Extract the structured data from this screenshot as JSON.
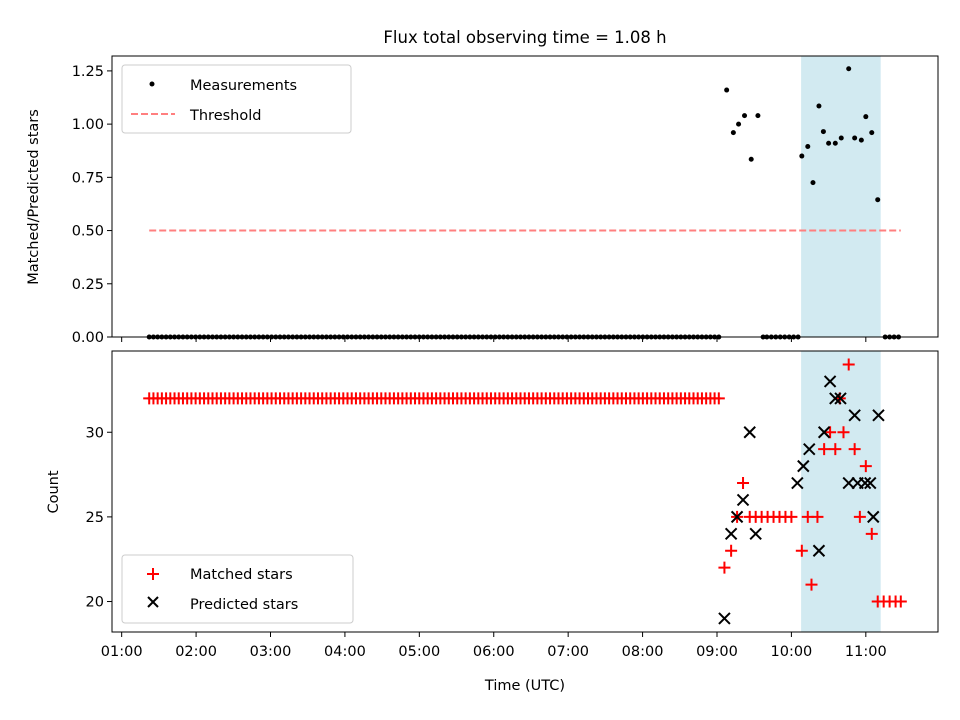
{
  "chart_data": {
    "title": "Flux total observing time = 1.08 h",
    "xlabel": "Time (UTC)",
    "x_unit": "hours UTC",
    "x_ticks": [
      {
        "value": 1,
        "label": "01:00"
      },
      {
        "value": 2,
        "label": "02:00"
      },
      {
        "value": 3,
        "label": "03:00"
      },
      {
        "value": 4,
        "label": "04:00"
      },
      {
        "value": 5,
        "label": "05:00"
      },
      {
        "value": 6,
        "label": "06:00"
      },
      {
        "value": 7,
        "label": "07:00"
      },
      {
        "value": 8,
        "label": "08:00"
      },
      {
        "value": 9,
        "label": "09:00"
      },
      {
        "value": 10,
        "label": "10:00"
      },
      {
        "value": 11,
        "label": "11:00"
      }
    ],
    "xlim": [
      0.87,
      11.97
    ],
    "shaded_span": {
      "x0": 10.13,
      "x1": 11.2,
      "color": "#add8e6"
    },
    "panels": [
      {
        "type": "scatter",
        "ylabel": "Matched/Predicted stars",
        "ylim": [
          0,
          1.32
        ],
        "y_ticks": [
          0,
          0.25,
          0.5,
          0.75,
          1.0,
          1.25
        ],
        "y_tick_labels": [
          "0.00",
          "0.25",
          "0.50",
          "0.75",
          "1.00",
          "1.25"
        ],
        "legend": {
          "position": "upper-left",
          "entries": [
            {
              "label": "Measurements",
              "marker": "dot",
              "color": "#000000"
            },
            {
              "label": "Threshold",
              "marker": "dashed-line",
              "color": "#ff7f7f"
            }
          ]
        },
        "threshold": {
          "name": "Threshold",
          "y": 0.5,
          "x": [
            1.37,
            11.47
          ],
          "color": "#ff7f7f"
        },
        "measurements": {
          "name": "Measurements",
          "color": "#000000",
          "zeros": {
            "x_start": 1.37,
            "x_end": 9.03,
            "step": 0.0567
          },
          "points": [
            [
              9.13,
              1.16
            ],
            [
              9.22,
              0.96
            ],
            [
              9.29,
              1.0
            ],
            [
              9.37,
              1.04
            ],
            [
              9.46,
              0.835
            ],
            [
              9.55,
              1.04
            ],
            [
              9.62,
              0
            ],
            [
              9.67,
              0
            ],
            [
              9.73,
              0
            ],
            [
              9.79,
              0
            ],
            [
              9.85,
              0
            ],
            [
              9.91,
              0
            ],
            [
              9.97,
              0
            ],
            [
              10.03,
              0
            ],
            [
              10.09,
              0
            ],
            [
              10.14,
              0.85
            ],
            [
              10.22,
              0.895
            ],
            [
              10.29,
              0.725
            ],
            [
              10.37,
              1.085
            ],
            [
              10.43,
              0.965
            ],
            [
              10.5,
              0.91
            ],
            [
              10.59,
              0.91
            ],
            [
              10.67,
              0.935
            ],
            [
              10.77,
              1.26
            ],
            [
              10.85,
              0.935
            ],
            [
              10.94,
              0.925
            ],
            [
              11.0,
              1.035
            ],
            [
              11.08,
              0.96
            ],
            [
              11.16,
              0.645
            ],
            [
              11.26,
              0
            ],
            [
              11.32,
              0
            ],
            [
              11.38,
              0
            ],
            [
              11.44,
              0
            ]
          ]
        }
      },
      {
        "type": "scatter",
        "ylabel": "Count",
        "ylim": [
          18.2,
          34.8
        ],
        "y_ticks": [
          20,
          25,
          30
        ],
        "y_tick_labels": [
          "20",
          "25",
          "30"
        ],
        "legend": {
          "position": "lower-left",
          "entries": [
            {
              "label": "Matched stars",
              "marker": "plus",
              "color": "#ff0000"
            },
            {
              "label": "Predicted stars",
              "marker": "x",
              "color": "#000000"
            }
          ]
        },
        "matched": {
          "name": "Matched stars",
          "color": "#ff0000",
          "constant_run": {
            "y": 32,
            "x_start": 1.37,
            "x_end": 9.03,
            "step": 0.0567
          },
          "points": [
            [
              9.1,
              22
            ],
            [
              9.19,
              23
            ],
            [
              9.27,
              25
            ],
            [
              9.35,
              27
            ],
            [
              9.44,
              25
            ],
            [
              9.52,
              25
            ],
            [
              9.6,
              25
            ],
            [
              9.68,
              25
            ],
            [
              9.76,
              25
            ],
            [
              9.84,
              25
            ],
            [
              9.92,
              25
            ],
            [
              10.0,
              25
            ],
            [
              10.14,
              23
            ],
            [
              10.22,
              25
            ],
            [
              10.27,
              21
            ],
            [
              10.35,
              25
            ],
            [
              10.44,
              29
            ],
            [
              10.52,
              30
            ],
            [
              10.59,
              29
            ],
            [
              10.65,
              32
            ],
            [
              10.7,
              30
            ],
            [
              10.77,
              34
            ],
            [
              10.85,
              29
            ],
            [
              10.92,
              25
            ],
            [
              11.0,
              28
            ],
            [
              11.08,
              24
            ],
            [
              11.16,
              20
            ],
            [
              11.24,
              20
            ],
            [
              11.32,
              20
            ],
            [
              11.4,
              20
            ],
            [
              11.47,
              20
            ]
          ]
        },
        "predicted": {
          "name": "Predicted stars",
          "color": "#000000",
          "points": [
            [
              9.1,
              19
            ],
            [
              9.19,
              24
            ],
            [
              9.27,
              25
            ],
            [
              9.35,
              26
            ],
            [
              9.44,
              30
            ],
            [
              9.52,
              24
            ],
            [
              10.08,
              27
            ],
            [
              10.16,
              28
            ],
            [
              10.24,
              29
            ],
            [
              10.37,
              23
            ],
            [
              10.44,
              30
            ],
            [
              10.52,
              33
            ],
            [
              10.59,
              32
            ],
            [
              10.66,
              32
            ],
            [
              10.77,
              27
            ],
            [
              10.85,
              31
            ],
            [
              10.89,
              27
            ],
            [
              10.99,
              27
            ],
            [
              11.06,
              27
            ],
            [
              11.1,
              25
            ],
            [
              11.17,
              31
            ]
          ]
        }
      }
    ]
  }
}
